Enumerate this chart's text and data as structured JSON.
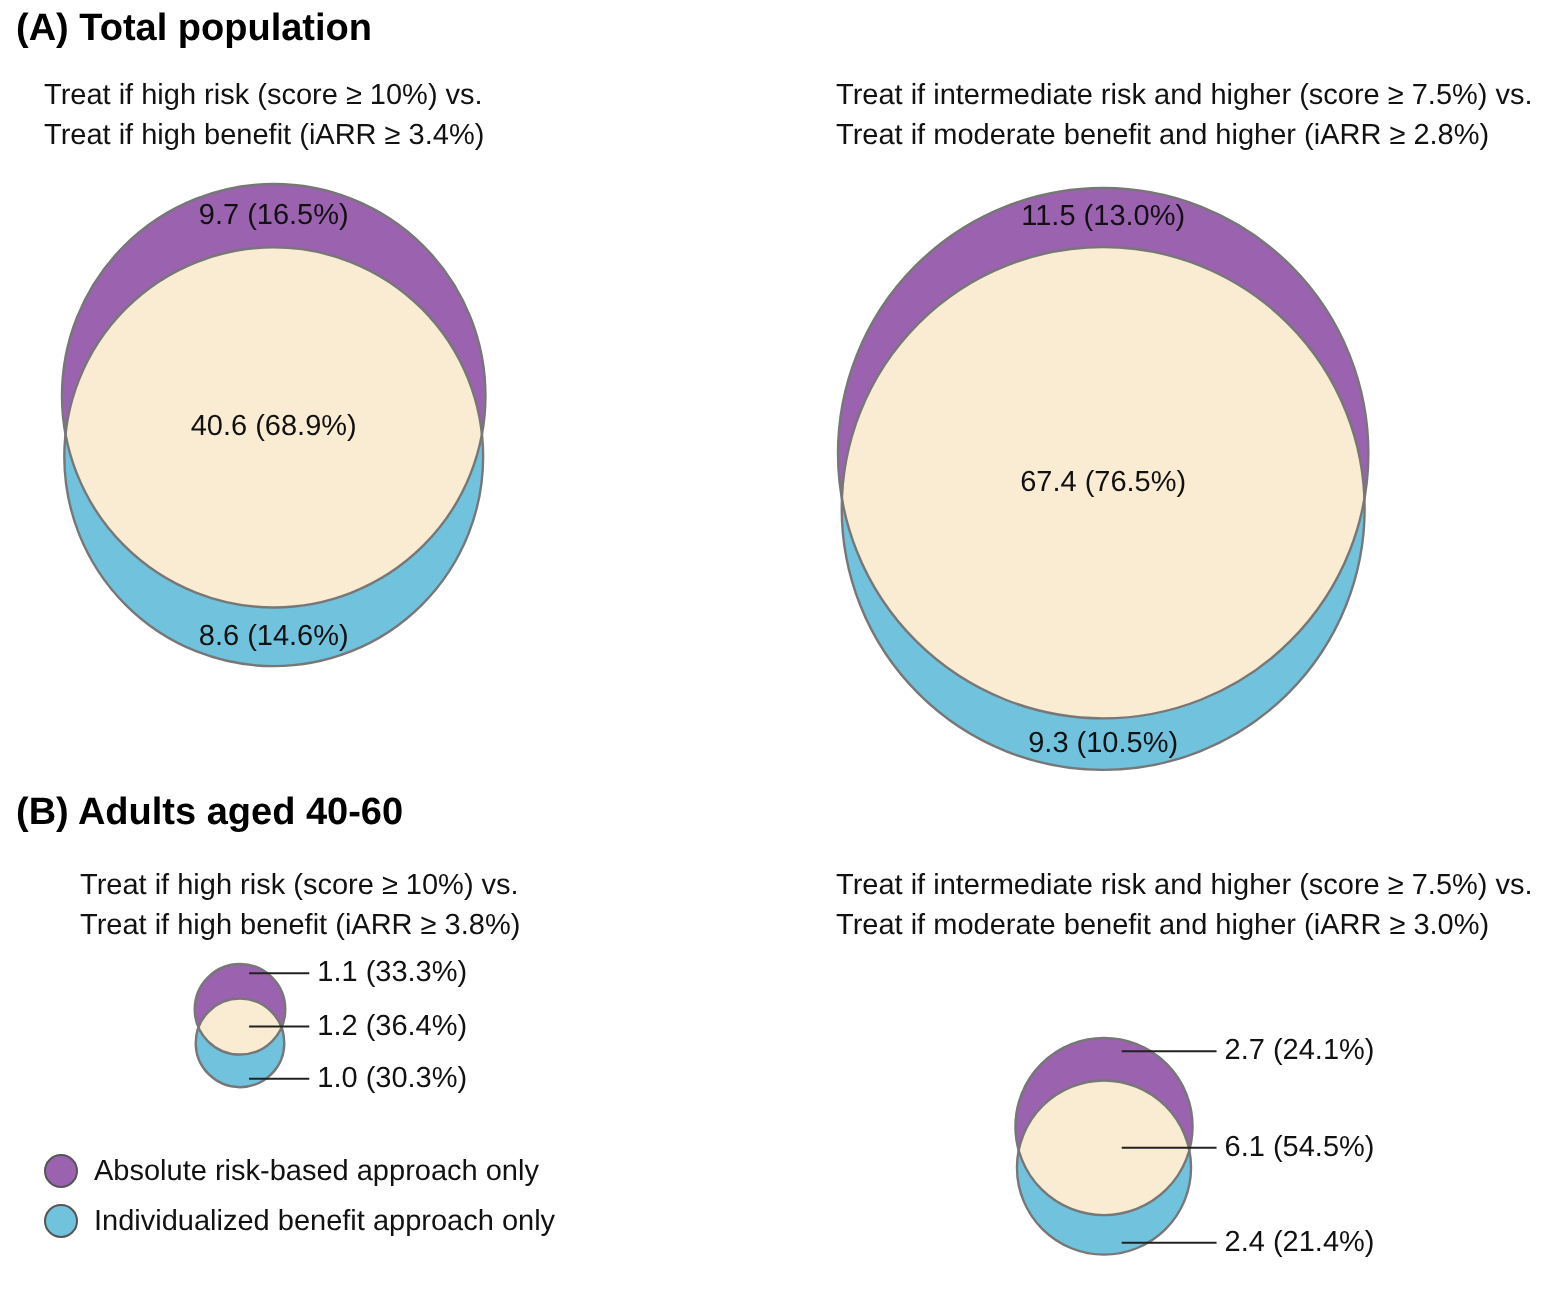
{
  "chart_data": [
    {
      "type": "other",
      "title": "(A) Total population",
      "annotations": [
        "Treat if high risk (score ≥ 10%)  vs.",
        "Treat if high benefit (iARR ≥ 3.4%)"
      ],
      "values": [
        9.7,
        40.6,
        8.6
      ],
      "value_labels": [
        "9.7 (16.5%)",
        "40.6 (68.9%)",
        "8.6 (14.6%)"
      ],
      "colors": [
        "#9b62b0",
        "#f9ecd2",
        "#70c2dd"
      ]
    },
    {
      "type": "other",
      "annotations": [
        "Treat if intermediate risk and higher (score ≥ 7.5%) vs.",
        "Treat if moderate benefit and higher (iARR ≥ 2.8%)"
      ],
      "values": [
        11.5,
        67.4,
        9.3
      ],
      "value_labels": [
        "11.5 (13.0%)",
        "67.4 (76.5%)",
        "9.3 (10.5%)"
      ],
      "colors": [
        "#9b62b0",
        "#f9ecd2",
        "#70c2dd"
      ]
    },
    {
      "type": "other",
      "title": "(B) Adults aged 40-60",
      "annotations": [
        "Treat if high risk (score ≥ 10%)  vs.",
        "Treat if high benefit (iARR ≥ 3.8%)",
        "Absolute risk-based approach only",
        "Individualized benefit approach only"
      ],
      "values": [
        1.1,
        1.2,
        1.0
      ],
      "value_labels": [
        "1.1 (33.3%)",
        "1.2 (36.4%)",
        "1.0 (30.3%)"
      ],
      "colors": [
        "#9b62b0",
        "#f9ecd2",
        "#70c2dd"
      ]
    },
    {
      "type": "other",
      "annotations": [
        "Treat if intermediate risk and higher (score ≥ 7.5%) vs.",
        "Treat if moderate benefit and higher (iARR ≥ 3.0%)"
      ],
      "values": [
        2.7,
        6.1,
        2.4
      ],
      "value_labels": [
        "2.7 (24.1%)",
        "6.1 (54.5%)",
        "2.4 (21.4%)"
      ],
      "colors": [
        "#9b62b0",
        "#f9ecd2",
        "#70c2dd"
      ]
    }
  ]
}
